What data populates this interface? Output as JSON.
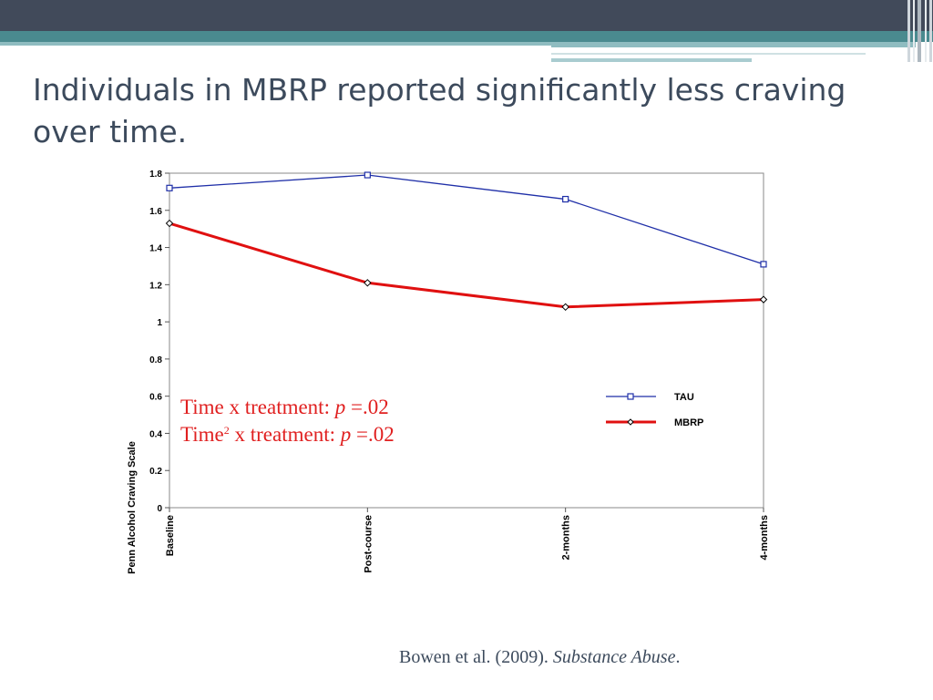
{
  "slide": {
    "title": "Individuals in MBRP reported significantly less craving over time.",
    "annotation": {
      "line1_prefix": "Time x treatment: ",
      "line1_p": "p",
      "line1_value": " =.02",
      "line2_prefix": "Time",
      "line2_sup": "2",
      "line2_mid": " x treatment: ",
      "line2_p": "p",
      "line2_value": " =.02"
    },
    "citation": {
      "authors": "Bowen et al. (2009). ",
      "journal": "Substance Abuse",
      "end": "."
    }
  },
  "colors": {
    "header_band": "#414a5a",
    "teal_band": "#4a8a8f",
    "title_text": "#3c4a5c",
    "annotation": "#e02020",
    "tau_line": "#1f2fa8",
    "mbrp_line": "#e01010"
  },
  "chart_data": {
    "type": "line",
    "title": "",
    "xlabel": "",
    "ylabel": "Penn Alcohol Craving Scale",
    "categories": [
      "Baseline",
      "Post-course",
      "2-months",
      "4-months"
    ],
    "ylim": [
      0,
      1.8
    ],
    "yticks": [
      "0",
      "0.2",
      "0.4",
      "0.6",
      "0.8",
      "1",
      "1.2",
      "1.4",
      "1.6",
      "1.8"
    ],
    "grid": false,
    "legend_position": "right",
    "series": [
      {
        "name": "TAU",
        "values": [
          1.72,
          1.79,
          1.66,
          1.31
        ],
        "marker": "square",
        "color": "#1f2fa8"
      },
      {
        "name": "MBRP",
        "values": [
          1.53,
          1.21,
          1.08,
          1.12
        ],
        "marker": "diamond",
        "color": "#e01010"
      }
    ]
  }
}
